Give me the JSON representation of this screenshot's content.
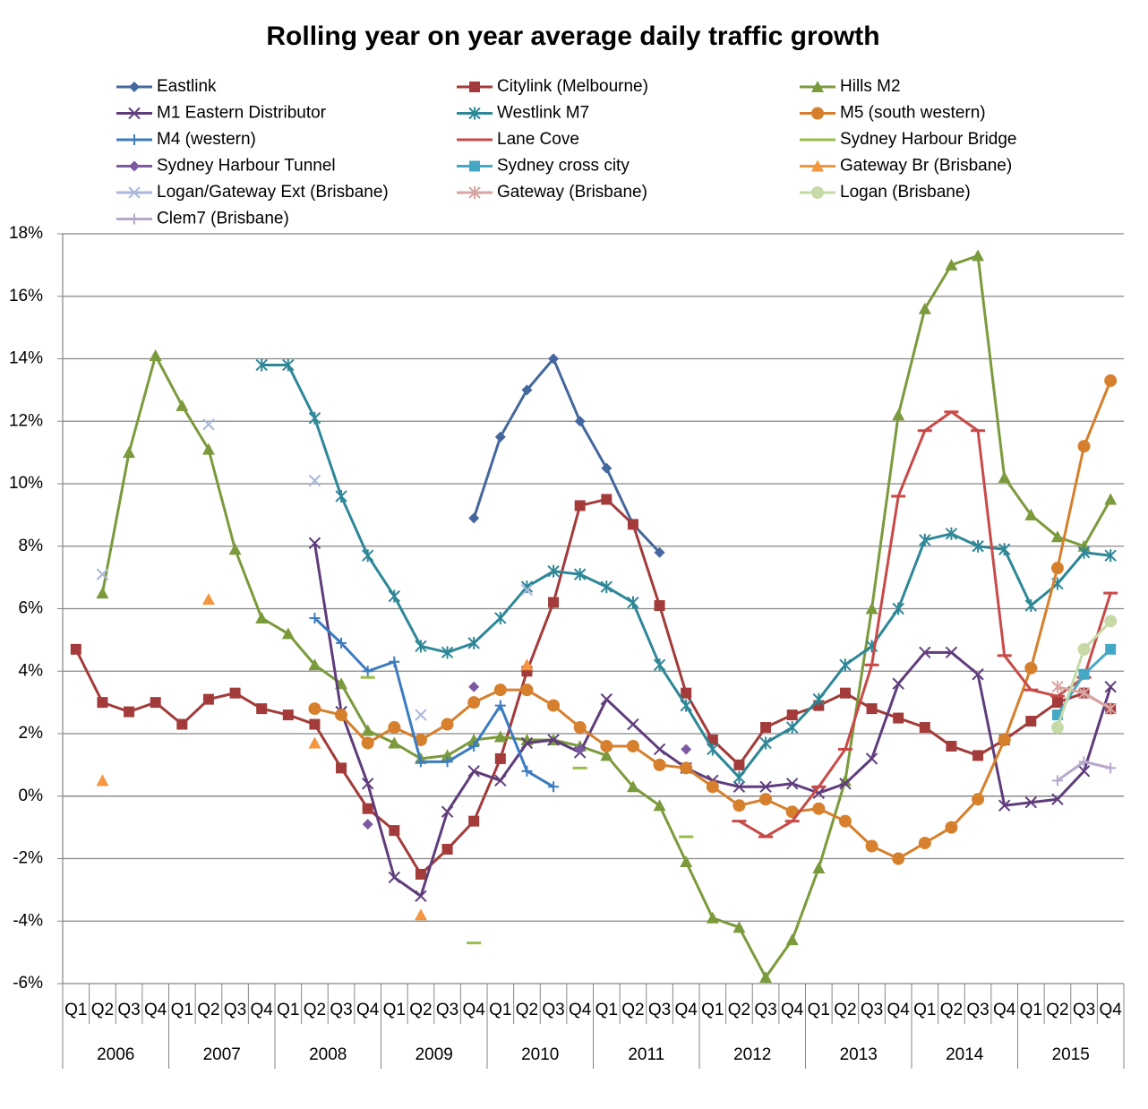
{
  "chart_data": {
    "type": "line",
    "title": "Rolling year on year average daily traffic growth",
    "categories": [
      "Q1",
      "Q2",
      "Q3",
      "Q4",
      "Q1",
      "Q2",
      "Q3",
      "Q4",
      "Q1",
      "Q2",
      "Q3",
      "Q4",
      "Q1",
      "Q2",
      "Q3",
      "Q4",
      "Q1",
      "Q2",
      "Q3",
      "Q4",
      "Q1",
      "Q2",
      "Q3",
      "Q4",
      "Q1",
      "Q2",
      "Q3",
      "Q4",
      "Q1",
      "Q2",
      "Q3",
      "Q4",
      "Q1",
      "Q2",
      "Q3",
      "Q4",
      "Q1",
      "Q2",
      "Q3",
      "Q4"
    ],
    "category_groups": [
      "2006",
      "2007",
      "2008",
      "2009",
      "2010",
      "2011",
      "2012",
      "2013",
      "2014",
      "2015"
    ],
    "ylim": [
      -6,
      18
    ],
    "yticks": [
      {
        "value": -6,
        "label": "-6%"
      },
      {
        "value": -4,
        "label": "-4%"
      },
      {
        "value": -2,
        "label": "-2%"
      },
      {
        "value": 0,
        "label": "0%"
      },
      {
        "value": 2,
        "label": "2%"
      },
      {
        "value": 4,
        "label": "4%"
      },
      {
        "value": 6,
        "label": "6%"
      },
      {
        "value": 8,
        "label": "8%"
      },
      {
        "value": 10,
        "label": "10%"
      },
      {
        "value": 12,
        "label": "12%"
      },
      {
        "value": 14,
        "label": "14%"
      },
      {
        "value": 16,
        "label": "16%"
      },
      {
        "value": 18,
        "label": "18%"
      }
    ],
    "grid": true,
    "series": [
      {
        "name": "Eastlink",
        "color": "#44689e",
        "marker": "diamond",
        "values": [
          null,
          null,
          null,
          null,
          null,
          null,
          null,
          null,
          null,
          null,
          null,
          null,
          null,
          null,
          null,
          8.9,
          11.5,
          13.0,
          14.0,
          12.0,
          10.5,
          8.7,
          7.8,
          null,
          null,
          null,
          null,
          null,
          null,
          null,
          null,
          null,
          null,
          null,
          null,
          null,
          null,
          null,
          null,
          null
        ]
      },
      {
        "name": "Citylink (Melbourne)",
        "color": "#a23b3a",
        "marker": "square",
        "values": [
          4.7,
          3.0,
          2.7,
          3.0,
          2.3,
          3.1,
          3.3,
          2.8,
          2.6,
          2.3,
          0.9,
          -0.4,
          -1.1,
          -2.5,
          -1.7,
          -0.8,
          1.2,
          4.0,
          6.2,
          9.3,
          9.5,
          8.7,
          6.1,
          3.3,
          1.8,
          1.0,
          2.2,
          2.6,
          2.9,
          3.3,
          2.8,
          2.5,
          2.2,
          1.6,
          1.3,
          1.8,
          2.4,
          3.0,
          3.3,
          2.8
        ]
      },
      {
        "name": "Hills M2",
        "color": "#7b9a3c",
        "marker": "triangle",
        "values": [
          null,
          6.5,
          11.0,
          14.1,
          12.5,
          11.1,
          7.9,
          5.7,
          5.2,
          4.2,
          3.6,
          2.1,
          1.7,
          1.2,
          1.3,
          1.8,
          1.9,
          1.8,
          1.8,
          1.6,
          1.3,
          0.3,
          -0.3,
          -2.1,
          -3.9,
          -4.2,
          -5.8,
          -4.6,
          -2.3,
          0.5,
          6.0,
          12.2,
          15.6,
          17.0,
          17.3,
          10.2,
          9.0,
          8.3,
          8.0,
          9.5
        ]
      },
      {
        "name": "M1 Eastern Distributor",
        "color": "#5f3d7c",
        "marker": "x",
        "values": [
          null,
          null,
          null,
          null,
          null,
          null,
          null,
          null,
          null,
          8.1,
          2.7,
          0.4,
          -2.6,
          -3.2,
          -0.5,
          0.8,
          0.5,
          1.7,
          1.8,
          1.4,
          3.1,
          2.3,
          1.5,
          0.9,
          0.5,
          0.3,
          0.3,
          0.4,
          0.1,
          0.4,
          1.2,
          3.6,
          4.6,
          4.6,
          3.9,
          -0.3,
          -0.2,
          -0.1,
          0.8,
          3.5
        ]
      },
      {
        "name": "Westlink M7",
        "color": "#2e8797",
        "marker": "star",
        "values": [
          null,
          null,
          null,
          null,
          null,
          null,
          null,
          13.8,
          13.8,
          12.1,
          9.6,
          7.7,
          6.4,
          4.8,
          4.6,
          4.9,
          5.7,
          6.7,
          7.2,
          7.1,
          6.7,
          6.2,
          4.2,
          2.9,
          1.5,
          0.6,
          1.7,
          2.2,
          3.1,
          4.2,
          4.8,
          6.0,
          8.2,
          8.4,
          8.0,
          7.9,
          6.1,
          6.8,
          7.8,
          7.7
        ]
      },
      {
        "name": "M5 (south western)",
        "color": "#d67f2c",
        "marker": "circle",
        "values": [
          null,
          null,
          null,
          null,
          null,
          null,
          null,
          null,
          null,
          2.8,
          2.6,
          1.7,
          2.2,
          1.8,
          2.3,
          3.0,
          3.4,
          3.4,
          2.9,
          2.2,
          1.6,
          1.6,
          1.0,
          0.9,
          0.3,
          -0.3,
          -0.1,
          -0.5,
          -0.4,
          -0.8,
          -1.6,
          -2.0,
          -1.5,
          -1.0,
          -0.1,
          1.8,
          4.1,
          7.3,
          11.2,
          13.3
        ]
      },
      {
        "name": "M4 (western)",
        "color": "#3b7bc0",
        "marker": "plus",
        "values": [
          null,
          null,
          null,
          null,
          null,
          null,
          null,
          null,
          null,
          5.7,
          4.9,
          4.0,
          4.3,
          1.1,
          1.1,
          1.6,
          2.9,
          0.8,
          0.3,
          null,
          null,
          null,
          null,
          null,
          null,
          null,
          null,
          null,
          null,
          null,
          null,
          null,
          null,
          null,
          null,
          null,
          null,
          null,
          null,
          null
        ]
      },
      {
        "name": "Lane Cove",
        "color": "#c84a48",
        "marker": "dash",
        "values": [
          null,
          null,
          null,
          null,
          null,
          null,
          null,
          null,
          null,
          null,
          null,
          null,
          null,
          null,
          null,
          null,
          null,
          null,
          null,
          null,
          null,
          null,
          null,
          null,
          null,
          -0.8,
          -1.3,
          -0.8,
          0.3,
          1.5,
          4.2,
          9.6,
          11.7,
          12.3,
          11.7,
          4.5,
          3.4,
          3.2,
          3.8,
          6.5
        ]
      },
      {
        "name": "Sydney Harbour Bridge",
        "color": "#98bd4a",
        "marker": "dash",
        "values": [
          null,
          null,
          null,
          null,
          null,
          null,
          null,
          null,
          null,
          null,
          null,
          3.8,
          null,
          null,
          null,
          -4.7,
          null,
          null,
          null,
          0.9,
          null,
          null,
          null,
          -1.3,
          null,
          null,
          null,
          null,
          null,
          null,
          null,
          null,
          null,
          null,
          null,
          null,
          null,
          null,
          null,
          null
        ]
      },
      {
        "name": "Sydney Harbour Tunnel",
        "color": "#7b5aa2",
        "marker": "diamond",
        "values": [
          null,
          null,
          null,
          null,
          null,
          null,
          null,
          null,
          null,
          null,
          null,
          -0.9,
          null,
          null,
          null,
          3.5,
          null,
          null,
          null,
          1.5,
          null,
          null,
          null,
          1.5,
          null,
          null,
          null,
          null,
          null,
          null,
          null,
          null,
          null,
          null,
          null,
          null,
          null,
          null,
          null,
          null
        ]
      },
      {
        "name": "Sydney cross city",
        "color": "#45a9c6",
        "marker": "square",
        "values": [
          null,
          null,
          null,
          null,
          null,
          null,
          null,
          null,
          null,
          null,
          null,
          null,
          null,
          null,
          null,
          null,
          null,
          null,
          null,
          null,
          null,
          null,
          null,
          null,
          null,
          null,
          null,
          null,
          null,
          null,
          null,
          null,
          null,
          null,
          null,
          null,
          null,
          2.6,
          3.9,
          4.7
        ]
      },
      {
        "name": "Gateway Br (Brisbane)",
        "color": "#f5953d",
        "marker": "triangle",
        "values": [
          null,
          0.5,
          null,
          null,
          null,
          6.3,
          null,
          null,
          null,
          1.7,
          null,
          null,
          null,
          -3.8,
          null,
          null,
          null,
          4.2,
          null,
          null,
          null,
          null,
          null,
          null,
          null,
          null,
          null,
          null,
          null,
          null,
          null,
          null,
          null,
          null,
          null,
          null,
          null,
          null,
          null,
          null
        ]
      },
      {
        "name": "Logan/Gateway Ext (Brisbane)",
        "color": "#a8b8da",
        "marker": "x",
        "values": [
          null,
          7.1,
          null,
          null,
          null,
          11.9,
          null,
          null,
          null,
          10.1,
          null,
          null,
          null,
          2.6,
          null,
          null,
          null,
          6.6,
          null,
          null,
          null,
          null,
          null,
          null,
          null,
          null,
          null,
          null,
          null,
          null,
          null,
          null,
          null,
          null,
          null,
          null,
          null,
          null,
          null,
          null
        ]
      },
      {
        "name": "Gateway (Brisbane)",
        "color": "#d8a5a3",
        "marker": "star",
        "values": [
          null,
          null,
          null,
          null,
          null,
          null,
          null,
          null,
          null,
          null,
          null,
          null,
          null,
          null,
          null,
          null,
          null,
          null,
          null,
          null,
          null,
          null,
          null,
          null,
          null,
          null,
          null,
          null,
          null,
          null,
          null,
          null,
          null,
          null,
          null,
          null,
          null,
          3.5,
          3.3,
          2.8
        ]
      },
      {
        "name": "Logan (Brisbane)",
        "color": "#c6daa8",
        "marker": "circle",
        "values": [
          null,
          null,
          null,
          null,
          null,
          null,
          null,
          null,
          null,
          null,
          null,
          null,
          null,
          null,
          null,
          null,
          null,
          null,
          null,
          null,
          null,
          null,
          null,
          null,
          null,
          null,
          null,
          null,
          null,
          null,
          null,
          null,
          null,
          null,
          null,
          null,
          null,
          2.2,
          4.7,
          5.6
        ]
      },
      {
        "name": "Clem7 (Brisbane)",
        "color": "#b6a8cc",
        "marker": "plus",
        "values": [
          null,
          null,
          null,
          null,
          null,
          null,
          null,
          null,
          null,
          null,
          null,
          null,
          null,
          null,
          null,
          null,
          null,
          null,
          null,
          null,
          null,
          null,
          null,
          null,
          null,
          null,
          null,
          null,
          null,
          null,
          null,
          null,
          null,
          null,
          null,
          null,
          null,
          0.5,
          1.1,
          0.9
        ]
      }
    ]
  }
}
